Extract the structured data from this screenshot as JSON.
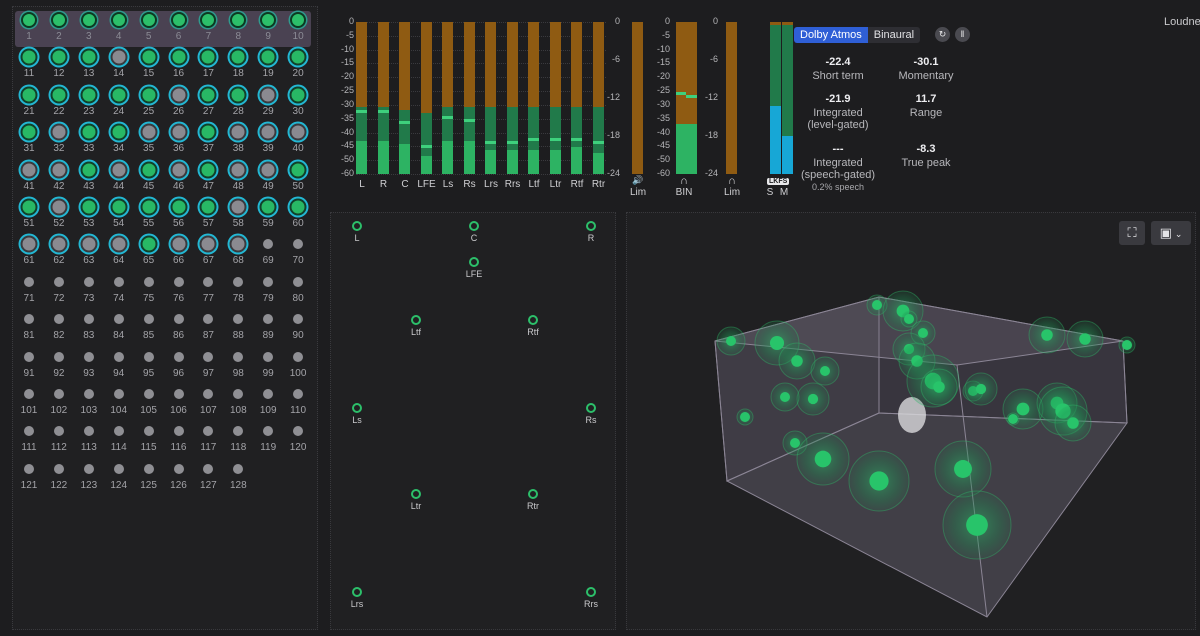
{
  "objects": {
    "items": [
      {
        "n": "1",
        "s": "active"
      },
      {
        "n": "2",
        "s": "active"
      },
      {
        "n": "3",
        "s": "active"
      },
      {
        "n": "4",
        "s": "active"
      },
      {
        "n": "5",
        "s": "active"
      },
      {
        "n": "6",
        "s": "active"
      },
      {
        "n": "7",
        "s": "active"
      },
      {
        "n": "8",
        "s": "active"
      },
      {
        "n": "9",
        "s": "active"
      },
      {
        "n": "10",
        "s": "active"
      },
      {
        "n": "11",
        "s": "selected"
      },
      {
        "n": "12",
        "s": "selected"
      },
      {
        "n": "13",
        "s": "selected"
      },
      {
        "n": "14",
        "s": "selected-grey"
      },
      {
        "n": "15",
        "s": "selected"
      },
      {
        "n": "16",
        "s": "selected"
      },
      {
        "n": "17",
        "s": "selected"
      },
      {
        "n": "18",
        "s": "selected"
      },
      {
        "n": "19",
        "s": "selected"
      },
      {
        "n": "20",
        "s": "selected"
      },
      {
        "n": "21",
        "s": "selected"
      },
      {
        "n": "22",
        "s": "selected"
      },
      {
        "n": "23",
        "s": "selected"
      },
      {
        "n": "24",
        "s": "selected"
      },
      {
        "n": "25",
        "s": "selected"
      },
      {
        "n": "26",
        "s": "selected-grey"
      },
      {
        "n": "27",
        "s": "selected"
      },
      {
        "n": "28",
        "s": "selected"
      },
      {
        "n": "29",
        "s": "selected-grey"
      },
      {
        "n": "30",
        "s": "selected"
      },
      {
        "n": "31",
        "s": "selected"
      },
      {
        "n": "32",
        "s": "selected-grey"
      },
      {
        "n": "33",
        "s": "selected"
      },
      {
        "n": "34",
        "s": "selected"
      },
      {
        "n": "35",
        "s": "selected-grey"
      },
      {
        "n": "36",
        "s": "selected-grey"
      },
      {
        "n": "37",
        "s": "selected"
      },
      {
        "n": "38",
        "s": "selected-grey"
      },
      {
        "n": "39",
        "s": "selected-grey"
      },
      {
        "n": "40",
        "s": "selected-grey"
      },
      {
        "n": "41",
        "s": "selected-grey"
      },
      {
        "n": "42",
        "s": "selected-grey"
      },
      {
        "n": "43",
        "s": "selected"
      },
      {
        "n": "44",
        "s": "selected-grey"
      },
      {
        "n": "45",
        "s": "selected"
      },
      {
        "n": "46",
        "s": "selected-grey"
      },
      {
        "n": "47",
        "s": "selected"
      },
      {
        "n": "48",
        "s": "selected-grey"
      },
      {
        "n": "49",
        "s": "selected-grey"
      },
      {
        "n": "50",
        "s": "selected"
      },
      {
        "n": "51",
        "s": "selected"
      },
      {
        "n": "52",
        "s": "selected-grey"
      },
      {
        "n": "53",
        "s": "selected"
      },
      {
        "n": "54",
        "s": "selected"
      },
      {
        "n": "55",
        "s": "selected"
      },
      {
        "n": "56",
        "s": "selected"
      },
      {
        "n": "57",
        "s": "selected"
      },
      {
        "n": "58",
        "s": "selected-grey"
      },
      {
        "n": "59",
        "s": "selected"
      },
      {
        "n": "60",
        "s": "selected"
      },
      {
        "n": "61",
        "s": "selected-grey"
      },
      {
        "n": "62",
        "s": "selected-grey"
      },
      {
        "n": "63",
        "s": "selected-grey"
      },
      {
        "n": "64",
        "s": "selected-grey"
      },
      {
        "n": "65",
        "s": "selected"
      },
      {
        "n": "66",
        "s": "selected-grey"
      },
      {
        "n": "67",
        "s": "selected-grey"
      },
      {
        "n": "68",
        "s": "selected-grey"
      },
      {
        "n": "69",
        "s": "inactive"
      },
      {
        "n": "70",
        "s": "inactive"
      },
      {
        "n": "71",
        "s": "inactive"
      },
      {
        "n": "72",
        "s": "inactive"
      },
      {
        "n": "73",
        "s": "inactive"
      },
      {
        "n": "74",
        "s": "inactive"
      },
      {
        "n": "75",
        "s": "inactive"
      },
      {
        "n": "76",
        "s": "inactive"
      },
      {
        "n": "77",
        "s": "inactive"
      },
      {
        "n": "78",
        "s": "inactive"
      },
      {
        "n": "79",
        "s": "inactive"
      },
      {
        "n": "80",
        "s": "inactive"
      },
      {
        "n": "81",
        "s": "inactive"
      },
      {
        "n": "82",
        "s": "inactive"
      },
      {
        "n": "83",
        "s": "inactive"
      },
      {
        "n": "84",
        "s": "inactive"
      },
      {
        "n": "85",
        "s": "inactive"
      },
      {
        "n": "86",
        "s": "inactive"
      },
      {
        "n": "87",
        "s": "inactive"
      },
      {
        "n": "88",
        "s": "inactive"
      },
      {
        "n": "89",
        "s": "inactive"
      },
      {
        "n": "90",
        "s": "inactive"
      },
      {
        "n": "91",
        "s": "inactive"
      },
      {
        "n": "92",
        "s": "inactive"
      },
      {
        "n": "93",
        "s": "inactive"
      },
      {
        "n": "94",
        "s": "inactive"
      },
      {
        "n": "95",
        "s": "inactive"
      },
      {
        "n": "96",
        "s": "inactive"
      },
      {
        "n": "97",
        "s": "inactive"
      },
      {
        "n": "98",
        "s": "inactive"
      },
      {
        "n": "99",
        "s": "inactive"
      },
      {
        "n": "100",
        "s": "inactive"
      },
      {
        "n": "101",
        "s": "inactive"
      },
      {
        "n": "102",
        "s": "inactive"
      },
      {
        "n": "103",
        "s": "inactive"
      },
      {
        "n": "104",
        "s": "inactive"
      },
      {
        "n": "105",
        "s": "inactive"
      },
      {
        "n": "106",
        "s": "inactive"
      },
      {
        "n": "107",
        "s": "inactive"
      },
      {
        "n": "108",
        "s": "inactive"
      },
      {
        "n": "109",
        "s": "inactive"
      },
      {
        "n": "110",
        "s": "inactive"
      },
      {
        "n": "111",
        "s": "inactive"
      },
      {
        "n": "112",
        "s": "inactive"
      },
      {
        "n": "113",
        "s": "inactive"
      },
      {
        "n": "114",
        "s": "inactive"
      },
      {
        "n": "115",
        "s": "inactive"
      },
      {
        "n": "116",
        "s": "inactive"
      },
      {
        "n": "117",
        "s": "inactive"
      },
      {
        "n": "118",
        "s": "inactive"
      },
      {
        "n": "119",
        "s": "inactive"
      },
      {
        "n": "120",
        "s": "inactive"
      },
      {
        "n": "121",
        "s": "inactive"
      },
      {
        "n": "122",
        "s": "inactive"
      },
      {
        "n": "123",
        "s": "inactive"
      },
      {
        "n": "124",
        "s": "inactive"
      },
      {
        "n": "125",
        "s": "inactive"
      },
      {
        "n": "126",
        "s": "inactive"
      },
      {
        "n": "127",
        "s": "inactive"
      },
      {
        "n": "128",
        "s": "inactive"
      }
    ]
  },
  "meters": {
    "scale": [
      "0",
      "-5",
      "-10",
      "-15",
      "-20",
      "-25",
      "-30",
      "-35",
      "-40",
      "-45",
      "-50",
      "-60"
    ],
    "channels": [
      {
        "label": "L",
        "level": 0.22,
        "mid": 0.44,
        "peak": 0.4
      },
      {
        "label": "R",
        "level": 0.22,
        "mid": 0.44,
        "peak": 0.4
      },
      {
        "label": "C",
        "level": 0.2,
        "mid": 0.42,
        "peak": 0.33
      },
      {
        "label": "LFE",
        "level": 0.12,
        "mid": 0.4,
        "peak": 0.17
      },
      {
        "label": "Ls",
        "level": 0.22,
        "mid": 0.44,
        "peak": 0.36
      },
      {
        "label": "Rs",
        "level": 0.22,
        "mid": 0.44,
        "peak": 0.34
      },
      {
        "label": "Lrs",
        "level": 0.16,
        "mid": 0.44,
        "peak": 0.2
      },
      {
        "label": "Rrs",
        "level": 0.16,
        "mid": 0.44,
        "peak": 0.2
      },
      {
        "label": "Ltf",
        "level": 0.16,
        "mid": 0.44,
        "peak": 0.22
      },
      {
        "label": "Ltr",
        "level": 0.16,
        "mid": 0.44,
        "peak": 0.22
      },
      {
        "label": "Rtf",
        "level": 0.18,
        "mid": 0.44,
        "peak": 0.22
      },
      {
        "label": "Rtr",
        "level": 0.14,
        "mid": 0.44,
        "peak": 0.2
      }
    ],
    "lim_scale": [
      "0",
      "-6",
      "-12",
      "-18",
      "-24"
    ],
    "lim_label": "Lim",
    "bin_scale": [
      "0",
      "-5",
      "-10",
      "-15",
      "-20",
      "-25",
      "-30",
      "-35",
      "-40",
      "-45",
      "-50",
      "-60"
    ],
    "bin_label": "BIN",
    "bin_levels": [
      0.33,
      0.33
    ],
    "lim2_scale": [
      "0",
      "-6",
      "-12",
      "-18",
      "-24"
    ],
    "lim2_label": "Lim",
    "lkfs_badge": "LKFS",
    "lkfs_s_label": "S",
    "lkfs_m_label": "M",
    "lkfs_levels": [
      0.45,
      0.25
    ],
    "colors": {
      "meter_bg": "#8f5b12",
      "meter_fill": "#2db363",
      "lkfs_fill": "#17a7d6"
    }
  },
  "loudness": {
    "title": "Loudness",
    "modes": [
      "Dolby Atmos",
      "Binaural"
    ],
    "active_mode": "Dolby Atmos",
    "reset_icon": "refresh-icon",
    "pause_icon": "pause-icon",
    "short_term": {
      "value": "-22.4",
      "label": "Short term"
    },
    "momentary": {
      "value": "-30.1",
      "label": "Momentary"
    },
    "integrated_level": {
      "value": "-21.9",
      "label1": "Integrated",
      "label2": "(level-gated)"
    },
    "range": {
      "value": "11.7",
      "label": "Range"
    },
    "integrated_speech": {
      "value": "---",
      "label1": "Integrated",
      "label2": "(speech-gated)",
      "sub": "0.2% speech"
    },
    "true_peak": {
      "value": "-8.3",
      "label": "True peak"
    }
  },
  "room2d": {
    "speakers": [
      {
        "label": "L"
      },
      {
        "label": "C"
      },
      {
        "label": "R"
      },
      {
        "label": "LFE"
      },
      {
        "label": "Ltf"
      },
      {
        "label": "Rtf"
      },
      {
        "label": "Ls"
      },
      {
        "label": "Rs"
      },
      {
        "label": "Ltr"
      },
      {
        "label": "Rtr"
      },
      {
        "label": "Lrs"
      },
      {
        "label": "Rrs"
      }
    ]
  },
  "room3d": {
    "fullscreen_icon": "fullscreen-icon",
    "view_icon": "cube-icon",
    "view_dropdown_icon": "chevron-down-icon"
  }
}
